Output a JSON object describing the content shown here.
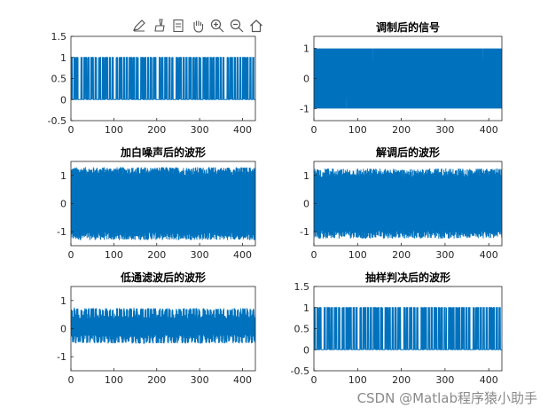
{
  "toolbar": {
    "icons": [
      "pen-edit-icon",
      "brush-icon",
      "data-tip-icon",
      "pan-hand-icon",
      "zoom-in-icon",
      "zoom-out-icon",
      "home-icon"
    ]
  },
  "watermark": "CSDN @Matlab程序猿小助手",
  "colors": {
    "line": "#0072BD",
    "axes": "#262626"
  },
  "chart_data": [
    {
      "type": "line",
      "title": "",
      "xlim": [
        0,
        430
      ],
      "ylim": [
        -0.5,
        1.5
      ],
      "xticks": [
        0,
        100,
        200,
        300,
        400
      ],
      "yticks": [
        -0.5,
        0,
        0.5,
        1,
        1.5
      ],
      "ytick_labels": [
        "-0.5",
        "0",
        "0.5",
        "1",
        "1.5"
      ],
      "signal": "binary",
      "lo": 0,
      "hi": 1,
      "noise": 0,
      "pattern": [
        1,
        0,
        1,
        0,
        1,
        0,
        0,
        1,
        0,
        1,
        1,
        0,
        1,
        0,
        1,
        1,
        0,
        1,
        0,
        0,
        1,
        0,
        1,
        0,
        1,
        1,
        0,
        1,
        0,
        1,
        0,
        0,
        1,
        0,
        1,
        1,
        0,
        1,
        0,
        1,
        0,
        1,
        1,
        0,
        1,
        0,
        1,
        0,
        0,
        1,
        1,
        0,
        1,
        0,
        1,
        0,
        1,
        0,
        1,
        1,
        0,
        0,
        1,
        0,
        1,
        0,
        1,
        1,
        0,
        1,
        0,
        1,
        0,
        0,
        1,
        0,
        1,
        1,
        0,
        1,
        0,
        1,
        0,
        1,
        1,
        0,
        1,
        0,
        1,
        0,
        1,
        0,
        0,
        1,
        1,
        0,
        1,
        0,
        1,
        0,
        1,
        0,
        1,
        1,
        0,
        1,
        0,
        1,
        0,
        0,
        1,
        0,
        1,
        1,
        0,
        1,
        0,
        1,
        0,
        1,
        0,
        1,
        1,
        0,
        1,
        0,
        1,
        0,
        1,
        0
      ]
    },
    {
      "type": "line",
      "title": "调制后的信号",
      "xlim": [
        0,
        430
      ],
      "ylim": [
        -1.4,
        1.4
      ],
      "xticks": [
        0,
        100,
        200,
        300,
        400
      ],
      "yticks": [
        -1,
        0,
        1
      ],
      "ytick_labels": [
        "-1",
        "0",
        "1"
      ],
      "signal": "modulated",
      "lo": -1,
      "hi": 1,
      "noise": 0
    },
    {
      "type": "line",
      "title": "加白噪声后的波形",
      "xlim": [
        0,
        430
      ],
      "ylim": [
        -1.5,
        1.5
      ],
      "xticks": [
        0,
        100,
        200,
        300,
        400
      ],
      "yticks": [
        -1,
        0,
        1
      ],
      "ytick_labels": [
        "-1",
        "0",
        "1"
      ],
      "signal": "noisy",
      "lo": -1.15,
      "hi": 1.15,
      "noise": 0.15
    },
    {
      "type": "line",
      "title": "解调后的波形",
      "xlim": [
        0,
        430
      ],
      "ylim": [
        -1.5,
        1.5
      ],
      "xticks": [
        0,
        100,
        200,
        300,
        400
      ],
      "yticks": [
        -1,
        0,
        1
      ],
      "ytick_labels": [
        "-1",
        "0",
        "1"
      ],
      "signal": "demod",
      "lo": -1.1,
      "hi": 1.1,
      "noise": 0.15
    },
    {
      "type": "line",
      "title": "低通滤波后的波形",
      "xlim": [
        0,
        430
      ],
      "ylim": [
        -1.5,
        1.5
      ],
      "xticks": [
        0,
        100,
        200,
        300,
        400
      ],
      "yticks": [
        -1,
        0,
        1
      ],
      "ytick_labels": [
        "-1",
        "0",
        "1"
      ],
      "signal": "lowpass",
      "lo": -0.45,
      "hi": 0.65,
      "noise": 0.08
    },
    {
      "type": "line",
      "title": "抽样判决后的波形",
      "xlim": [
        0,
        430
      ],
      "ylim": [
        -0.5,
        1.5
      ],
      "xticks": [
        0,
        100,
        200,
        300,
        400
      ],
      "yticks": [
        -0.5,
        0,
        0.5,
        1,
        1.5
      ],
      "ytick_labels": [
        "-0.5",
        "0",
        "0.5",
        "1",
        "1.5"
      ],
      "signal": "binary",
      "lo": 0,
      "hi": 1,
      "noise": 0
    }
  ]
}
